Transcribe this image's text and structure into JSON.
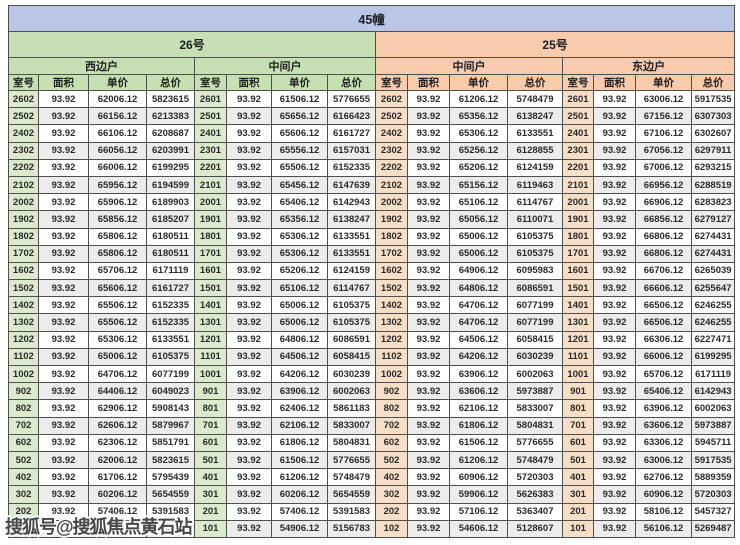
{
  "title": "45幢",
  "watermark": "搜狐号@搜狐焦点黄石站",
  "sections": [
    {
      "label": "26号",
      "units": [
        "西边户",
        "中间户"
      ]
    },
    {
      "label": "25号",
      "units": [
        "中间户",
        "东边户"
      ]
    }
  ],
  "columns": [
    "室号",
    "面积",
    "单价",
    "总价"
  ],
  "colors": {
    "title_bar": "#b9c6e7",
    "section_26": "#c6e0b4",
    "section_25": "#f8cbad",
    "room_cell_green": "#dbeacd",
    "room_cell_orange": "#f7dfc7",
    "stripe": "#ececec"
  },
  "rows": [
    [
      [
        "2602",
        "93.92",
        "62006.12",
        "5823615"
      ],
      [
        "2601",
        "93.92",
        "61506.12",
        "5776655"
      ],
      [
        "2602",
        "93.92",
        "61206.12",
        "5748479"
      ],
      [
        "2601",
        "93.92",
        "63006.12",
        "5917535"
      ]
    ],
    [
      [
        "2502",
        "93.92",
        "66156.12",
        "6213383"
      ],
      [
        "2501",
        "93.92",
        "65656.12",
        "6166423"
      ],
      [
        "2502",
        "93.92",
        "65356.12",
        "6138247"
      ],
      [
        "2501",
        "93.92",
        "67156.12",
        "6307303"
      ]
    ],
    [
      [
        "2402",
        "93.92",
        "66106.12",
        "6208687"
      ],
      [
        "2401",
        "93.92",
        "65606.12",
        "6161727"
      ],
      [
        "2402",
        "93.92",
        "65306.12",
        "6133551"
      ],
      [
        "2401",
        "93.92",
        "67106.12",
        "6302607"
      ]
    ],
    [
      [
        "2302",
        "93.92",
        "66056.12",
        "6203991"
      ],
      [
        "2301",
        "93.92",
        "65556.12",
        "6157031"
      ],
      [
        "2302",
        "93.92",
        "65256.12",
        "6128855"
      ],
      [
        "2301",
        "93.92",
        "67056.12",
        "6297911"
      ]
    ],
    [
      [
        "2202",
        "93.92",
        "66006.12",
        "6199295"
      ],
      [
        "2201",
        "93.92",
        "65506.12",
        "6152335"
      ],
      [
        "2202",
        "93.92",
        "65206.12",
        "6124159"
      ],
      [
        "2201",
        "93.92",
        "67006.12",
        "6293215"
      ]
    ],
    [
      [
        "2102",
        "93.92",
        "65956.12",
        "6194599"
      ],
      [
        "2101",
        "93.92",
        "65456.12",
        "6147639"
      ],
      [
        "2102",
        "93.92",
        "65156.12",
        "6119463"
      ],
      [
        "2101",
        "93.92",
        "66956.12",
        "6288519"
      ]
    ],
    [
      [
        "2002",
        "93.92",
        "65906.12",
        "6189903"
      ],
      [
        "2001",
        "93.92",
        "65406.12",
        "6142943"
      ],
      [
        "2002",
        "93.92",
        "65106.12",
        "6114767"
      ],
      [
        "2001",
        "93.92",
        "66906.12",
        "6283823"
      ]
    ],
    [
      [
        "1902",
        "93.92",
        "65856.12",
        "6185207"
      ],
      [
        "1901",
        "93.92",
        "65356.12",
        "6138247"
      ],
      [
        "1902",
        "93.92",
        "65056.12",
        "6110071"
      ],
      [
        "1901",
        "93.92",
        "66856.12",
        "6279127"
      ]
    ],
    [
      [
        "1802",
        "93.92",
        "65806.12",
        "6180511"
      ],
      [
        "1801",
        "93.92",
        "65306.12",
        "6133551"
      ],
      [
        "1802",
        "93.92",
        "65006.12",
        "6105375"
      ],
      [
        "1801",
        "93.92",
        "66806.12",
        "6274431"
      ]
    ],
    [
      [
        "1702",
        "93.92",
        "65806.12",
        "6180511"
      ],
      [
        "1701",
        "93.92",
        "65306.12",
        "6133551"
      ],
      [
        "1702",
        "93.92",
        "65006.12",
        "6105375"
      ],
      [
        "1701",
        "93.92",
        "66806.12",
        "6274431"
      ]
    ],
    [
      [
        "1602",
        "93.92",
        "65706.12",
        "6171119"
      ],
      [
        "1601",
        "93.92",
        "65206.12",
        "6124159"
      ],
      [
        "1602",
        "93.92",
        "64906.12",
        "6095983"
      ],
      [
        "1601",
        "93.92",
        "66706.12",
        "6265039"
      ]
    ],
    [
      [
        "1502",
        "93.92",
        "65606.12",
        "6161727"
      ],
      [
        "1501",
        "93.92",
        "65106.12",
        "6114767"
      ],
      [
        "1502",
        "93.92",
        "64806.12",
        "6086591"
      ],
      [
        "1501",
        "93.92",
        "66606.12",
        "6255647"
      ]
    ],
    [
      [
        "1402",
        "93.92",
        "65506.12",
        "6152335"
      ],
      [
        "1401",
        "93.92",
        "65006.12",
        "6105375"
      ],
      [
        "1402",
        "93.92",
        "64706.12",
        "6077199"
      ],
      [
        "1401",
        "93.92",
        "66506.12",
        "6246255"
      ]
    ],
    [
      [
        "1302",
        "93.92",
        "65506.12",
        "6152335"
      ],
      [
        "1301",
        "93.92",
        "65006.12",
        "6105375"
      ],
      [
        "1302",
        "93.92",
        "64706.12",
        "6077199"
      ],
      [
        "1301",
        "93.92",
        "66506.12",
        "6246255"
      ]
    ],
    [
      [
        "1202",
        "93.92",
        "65306.12",
        "6133551"
      ],
      [
        "1201",
        "93.92",
        "64806.12",
        "6086591"
      ],
      [
        "1202",
        "93.92",
        "64506.12",
        "6058415"
      ],
      [
        "1201",
        "93.92",
        "66306.12",
        "6227471"
      ]
    ],
    [
      [
        "1102",
        "93.92",
        "65006.12",
        "6105375"
      ],
      [
        "1101",
        "93.92",
        "64506.12",
        "6058415"
      ],
      [
        "1102",
        "93.92",
        "64206.12",
        "6030239"
      ],
      [
        "1101",
        "93.92",
        "66006.12",
        "6199295"
      ]
    ],
    [
      [
        "1002",
        "93.92",
        "64706.12",
        "6077199"
      ],
      [
        "1001",
        "93.92",
        "64206.12",
        "6030239"
      ],
      [
        "1002",
        "93.92",
        "63906.12",
        "6002063"
      ],
      [
        "1001",
        "93.92",
        "65706.12",
        "6171119"
      ]
    ],
    [
      [
        "902",
        "93.92",
        "64406.12",
        "6049023"
      ],
      [
        "901",
        "93.92",
        "63906.12",
        "6002063"
      ],
      [
        "902",
        "93.92",
        "63606.12",
        "5973887"
      ],
      [
        "901",
        "93.92",
        "65406.12",
        "6142943"
      ]
    ],
    [
      [
        "802",
        "93.92",
        "62906.12",
        "5908143"
      ],
      [
        "801",
        "93.92",
        "62406.12",
        "5861183"
      ],
      [
        "802",
        "93.92",
        "62106.12",
        "5833007"
      ],
      [
        "801",
        "93.92",
        "63906.12",
        "6002063"
      ]
    ],
    [
      [
        "702",
        "93.92",
        "62606.12",
        "5879967"
      ],
      [
        "701",
        "93.92",
        "62106.12",
        "5833007"
      ],
      [
        "702",
        "93.92",
        "61806.12",
        "5804831"
      ],
      [
        "701",
        "93.92",
        "63606.12",
        "5973887"
      ]
    ],
    [
      [
        "602",
        "93.92",
        "62306.12",
        "5851791"
      ],
      [
        "601",
        "93.92",
        "61806.12",
        "5804831"
      ],
      [
        "602",
        "93.92",
        "61506.12",
        "5776655"
      ],
      [
        "601",
        "93.92",
        "63306.12",
        "5945711"
      ]
    ],
    [
      [
        "502",
        "93.92",
        "62006.12",
        "5823615"
      ],
      [
        "501",
        "93.92",
        "61506.12",
        "5776655"
      ],
      [
        "502",
        "93.92",
        "61206.12",
        "5748479"
      ],
      [
        "501",
        "93.92",
        "63006.12",
        "5917535"
      ]
    ],
    [
      [
        "402",
        "93.92",
        "61706.12",
        "5795439"
      ],
      [
        "401",
        "93.92",
        "61206.12",
        "5748479"
      ],
      [
        "402",
        "93.92",
        "60906.12",
        "5720303"
      ],
      [
        "401",
        "93.92",
        "62706.12",
        "5889359"
      ]
    ],
    [
      [
        "302",
        "93.92",
        "60206.12",
        "5654559"
      ],
      [
        "301",
        "93.92",
        "60206.12",
        "5654559"
      ],
      [
        "302",
        "93.92",
        "59906.12",
        "5626383"
      ],
      [
        "301",
        "93.92",
        "60906.12",
        "5720303"
      ]
    ],
    [
      [
        "202",
        "93.92",
        "57406.12",
        "5391583"
      ],
      [
        "201",
        "93.92",
        "57406.12",
        "5391583"
      ],
      [
        "202",
        "93.92",
        "57106.12",
        "5363407"
      ],
      [
        "201",
        "93.92",
        "58106.12",
        "5457327"
      ]
    ],
    [
      [
        "102",
        "93.92",
        "55406.12",
        "5203743"
      ],
      [
        "101",
        "93.92",
        "54906.12",
        "5156783"
      ],
      [
        "102",
        "93.92",
        "54606.12",
        "5128607"
      ],
      [
        "101",
        "93.92",
        "56106.12",
        "5269487"
      ]
    ]
  ]
}
